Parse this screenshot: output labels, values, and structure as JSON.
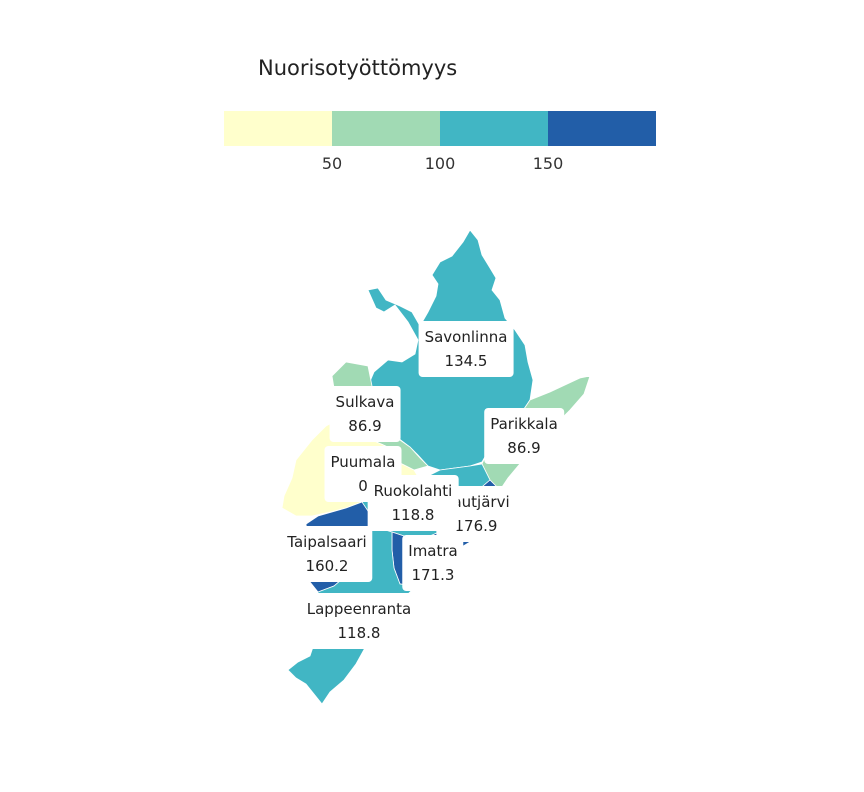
{
  "legend": {
    "title": "Nuorisotyöttömyys",
    "colors": [
      "#ffffcc",
      "#a1dab4",
      "#41b6c4",
      "#225ea8"
    ],
    "ticks": [
      "50",
      "100",
      "150"
    ]
  },
  "municipalities": [
    {
      "id": "savonlinna",
      "name": "Savonlinna",
      "value": "134.5",
      "color": "#41b6c4"
    },
    {
      "id": "sulkava",
      "name": "Sulkava",
      "value": "86.9",
      "color": "#a1dab4"
    },
    {
      "id": "parikkala",
      "name": "Parikkala",
      "value": "86.9",
      "color": "#a1dab4"
    },
    {
      "id": "puumala",
      "name": "Puumala",
      "value": "0",
      "color": "#ffffcc"
    },
    {
      "id": "ruokolahti",
      "name": "Ruokolahti",
      "value": "118.8",
      "color": "#41b6c4"
    },
    {
      "id": "rautjarvi",
      "name": "Rautjärvi",
      "value": "176.9",
      "color": "#225ea8"
    },
    {
      "id": "taipalsaari",
      "name": "Taipalsaari",
      "value": "160.2",
      "color": "#225ea8"
    },
    {
      "id": "imatra",
      "name": "Imatra",
      "value": "171.3",
      "color": "#225ea8"
    },
    {
      "id": "lappeenranta",
      "name": "Lappeenranta",
      "value": "118.8",
      "color": "#41b6c4"
    }
  ]
}
